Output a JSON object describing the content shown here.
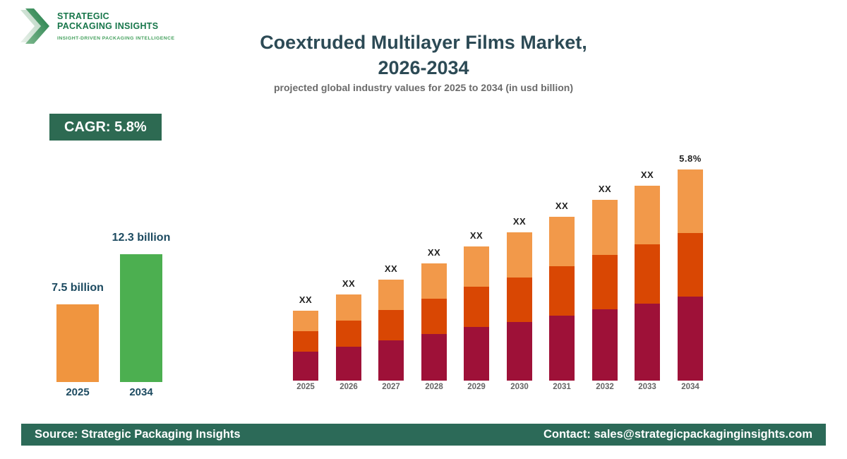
{
  "logo": {
    "line1": "STRATEGIC",
    "line2": "PACKAGING INSIGHTS",
    "tagline": "INSIGHT-DRIVEN PACKAGING INTELLIGENCE"
  },
  "header": {
    "title": "Coextruded Multilayer Films Market,\n2026-2034",
    "subtitle": "projected global industry values for 2025 to 2034 (in usd billion)"
  },
  "badge": {
    "text": "CAGR: 5.8%"
  },
  "footer": {
    "source": "Source: Strategic Packaging Insights",
    "contact": "Contact: sales@strategicpackaginginsights.com"
  },
  "colors": {
    "brand_green_dark": "#17764A",
    "brand_green_light": "#45A15E",
    "badge_green": "#2D6A52",
    "footer_green": "#2C6A58",
    "title_teal": "#2C4A55",
    "subtitle_gray": "#6B6B6B",
    "bar_label_dark": "#1F1F1F",
    "stacked_year_gray": "#666666",
    "mini_label_teal": "#1C4A60"
  },
  "chart_data": [
    {
      "type": "bar",
      "name": "market-size-summary",
      "unit": "usd billion",
      "categories": [
        "2025",
        "2034"
      ],
      "values": [
        7.5,
        12.3
      ],
      "value_labels": [
        "7.5 billion",
        "12.3 billion"
      ],
      "bar_colors": [
        "#F0953F",
        "#4CAF50"
      ],
      "grid": false,
      "legend": false
    },
    {
      "type": "bar",
      "subtype": "stacked",
      "name": "yearly-projection-stacked",
      "note": "numeric values redacted in source image as XX; series values are relative bar-segment heights estimated from pixels",
      "categories": [
        "2025",
        "2026",
        "2027",
        "2028",
        "2029",
        "2030",
        "2031",
        "2032",
        "2033",
        "2034"
      ],
      "series": [
        {
          "name": "segment-bottom",
          "color": "#9E1138",
          "values": [
            41,
            48,
            57,
            66,
            76,
            83,
            92,
            101,
            109,
            119
          ]
        },
        {
          "name": "segment-middle",
          "color": "#D94703",
          "values": [
            29,
            37,
            43,
            50,
            57,
            63,
            70,
            77,
            84,
            90
          ]
        },
        {
          "name": "segment-top",
          "color": "#F2994A",
          "values": [
            29,
            37,
            43,
            50,
            57,
            64,
            70,
            78,
            83,
            90
          ]
        }
      ],
      "bar_top_labels": [
        "XX",
        "XX",
        "XX",
        "XX",
        "XX",
        "XX",
        "XX",
        "XX",
        "XX",
        "5.8%"
      ],
      "grid": false,
      "legend": false
    }
  ]
}
